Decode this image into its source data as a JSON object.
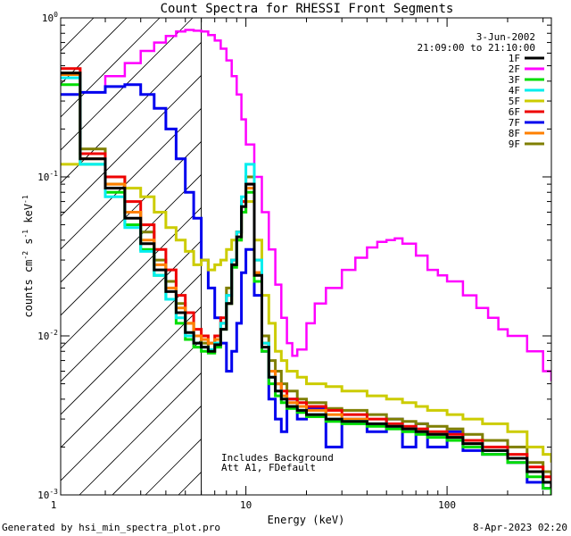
{
  "chart_data": {
    "type": "line",
    "title": "Count Spectra for RHESSI Front Segments",
    "xlabel": "Energy (keV)",
    "ylabel": "counts cm^-2 s^-1 keV^-1",
    "xscale": "log",
    "yscale": "log",
    "xlim": [
      1.2,
      330
    ],
    "ylim": [
      0.001,
      1.0
    ],
    "x_ticks": [
      {
        "value": 1,
        "label": "1"
      },
      {
        "value": 10,
        "label": "10"
      },
      {
        "value": 100,
        "label": "100"
      }
    ],
    "y_ticks": [
      {
        "value": 1,
        "label": "10^0"
      },
      {
        "value": 0.1,
        "label": "10^-1"
      },
      {
        "value": 0.01,
        "label": "10^-2"
      },
      {
        "value": 0.001,
        "label": "10^-3"
      }
    ],
    "annotation_date": "3-Jun-2002",
    "annotation_time": "21:09:00 to 21:10:00",
    "note_lines": [
      "Includes Background",
      "Att A1, FDefault"
    ],
    "attenuator_edge_keV": 6,
    "series": [
      {
        "name": "2F",
        "color": "#ff00ff",
        "x": [
          1.5,
          2,
          2.5,
          3,
          3.5,
          4,
          4.5,
          5,
          5.5,
          6,
          6.5,
          7,
          7.5,
          8,
          8.5,
          9,
          9.5,
          10,
          11,
          12,
          13,
          14,
          15,
          16,
          17,
          18,
          20,
          22,
          25,
          30,
          35,
          40,
          45,
          50,
          55,
          60,
          70,
          80,
          90,
          100,
          120,
          140,
          160,
          180,
          200,
          250,
          300,
          330
        ],
        "y": [
          0.34,
          0.43,
          0.52,
          0.62,
          0.7,
          0.77,
          0.82,
          0.84,
          0.83,
          0.82,
          0.78,
          0.72,
          0.64,
          0.54,
          0.43,
          0.33,
          0.23,
          0.16,
          0.1,
          0.06,
          0.035,
          0.021,
          0.013,
          0.009,
          0.0075,
          0.0082,
          0.012,
          0.016,
          0.02,
          0.026,
          0.031,
          0.036,
          0.039,
          0.04,
          0.041,
          0.038,
          0.032,
          0.026,
          0.024,
          0.022,
          0.018,
          0.015,
          0.013,
          0.011,
          0.01,
          0.008,
          0.006,
          0.0052
        ]
      },
      {
        "name": "7F",
        "color": "#0000ee",
        "x": [
          1.2,
          1.5,
          2,
          2.5,
          3,
          3.5,
          4,
          4.5,
          5,
          5.5,
          6,
          6.5,
          7,
          7.5,
          8,
          8.5,
          9,
          9.5,
          10,
          11,
          12,
          13,
          14,
          15,
          16,
          18,
          20,
          25,
          30,
          40,
          50,
          60,
          70,
          80,
          100,
          120,
          150,
          200,
          250,
          300,
          330
        ],
        "y": [
          0.33,
          0.34,
          0.37,
          0.38,
          0.33,
          0.27,
          0.2,
          0.13,
          0.08,
          0.055,
          0.03,
          0.02,
          0.013,
          0.009,
          0.006,
          0.008,
          0.012,
          0.025,
          0.035,
          0.018,
          0.008,
          0.004,
          0.003,
          0.0025,
          0.004,
          0.003,
          0.0035,
          0.002,
          0.003,
          0.0025,
          0.003,
          0.002,
          0.0028,
          0.002,
          0.0025,
          0.0019,
          0.0018,
          0.0016,
          0.0012,
          0.0011,
          0.001
        ]
      },
      {
        "name": "9F",
        "color": "#7f7f00",
        "x": [
          1.2,
          1.5,
          2,
          2.5,
          3,
          3.5,
          4,
          4.5,
          5,
          5.5,
          6,
          6.5,
          7,
          7.5,
          8,
          8.5,
          9,
          9.5,
          10,
          11,
          12,
          13,
          14,
          15,
          16,
          18,
          20,
          25,
          30,
          40,
          50,
          60,
          70,
          80,
          100,
          120,
          150,
          200,
          250,
          300,
          330
        ],
        "y": [
          0.45,
          0.15,
          0.09,
          0.06,
          0.045,
          0.03,
          0.022,
          0.016,
          0.012,
          0.01,
          0.009,
          0.008,
          0.009,
          0.012,
          0.02,
          0.03,
          0.045,
          0.07,
          0.1,
          0.03,
          0.01,
          0.007,
          0.006,
          0.005,
          0.0045,
          0.004,
          0.0038,
          0.0035,
          0.0034,
          0.0032,
          0.003,
          0.0029,
          0.0028,
          0.0027,
          0.0026,
          0.0024,
          0.0022,
          0.002,
          0.0016,
          0.0014,
          0.0013
        ]
      },
      {
        "name": "5F",
        "color": "#cccc00",
        "x": [
          1.2,
          1.5,
          2,
          2.5,
          3,
          3.5,
          4,
          4.5,
          5,
          5.5,
          6,
          6.5,
          7,
          7.5,
          8,
          8.5,
          9,
          9.5,
          10,
          11,
          12,
          13,
          14,
          15,
          16,
          18,
          20,
          25,
          30,
          40,
          50,
          60,
          70,
          80,
          100,
          120,
          150,
          200,
          250,
          300,
          330
        ],
        "y": [
          0.12,
          0.14,
          0.1,
          0.085,
          0.075,
          0.06,
          0.048,
          0.04,
          0.034,
          0.028,
          0.03,
          0.026,
          0.028,
          0.03,
          0.035,
          0.04,
          0.045,
          0.06,
          0.07,
          0.04,
          0.018,
          0.012,
          0.008,
          0.007,
          0.006,
          0.0055,
          0.005,
          0.0048,
          0.0045,
          0.0042,
          0.004,
          0.0038,
          0.0036,
          0.0034,
          0.0032,
          0.003,
          0.0028,
          0.0025,
          0.002,
          0.0018,
          0.0016
        ]
      },
      {
        "name": "6F",
        "color": "#ee0000",
        "x": [
          1.2,
          1.5,
          2,
          2.5,
          3,
          3.5,
          4,
          4.5,
          5,
          5.5,
          6,
          6.5,
          7,
          7.5,
          8,
          8.5,
          9,
          9.5,
          10,
          11,
          12,
          13,
          14,
          15,
          16,
          18,
          20,
          25,
          30,
          40,
          50,
          60,
          70,
          80,
          100,
          120,
          150,
          200,
          250,
          300,
          330
        ],
        "y": [
          0.48,
          0.14,
          0.1,
          0.07,
          0.05,
          0.035,
          0.026,
          0.018,
          0.014,
          0.011,
          0.01,
          0.009,
          0.01,
          0.013,
          0.018,
          0.03,
          0.045,
          0.07,
          0.09,
          0.025,
          0.009,
          0.006,
          0.005,
          0.0045,
          0.004,
          0.0038,
          0.0036,
          0.0034,
          0.0032,
          0.003,
          0.0028,
          0.0027,
          0.0026,
          0.0025,
          0.0024,
          0.0022,
          0.002,
          0.0018,
          0.0015,
          0.0013,
          0.0012
        ]
      },
      {
        "name": "8F",
        "color": "#ff8000",
        "x": [
          1.2,
          1.5,
          2,
          2.5,
          3,
          3.5,
          4,
          4.5,
          5,
          5.5,
          6,
          6.5,
          7,
          7.5,
          8,
          8.5,
          9,
          9.5,
          10,
          11,
          12,
          13,
          14,
          15,
          16,
          18,
          20,
          25,
          30,
          40,
          50,
          60,
          70,
          80,
          100,
          120,
          150,
          200,
          250,
          300,
          330
        ],
        "y": [
          0.44,
          0.13,
          0.09,
          0.06,
          0.04,
          0.028,
          0.02,
          0.015,
          0.012,
          0.01,
          0.0095,
          0.009,
          0.0095,
          0.012,
          0.016,
          0.028,
          0.04,
          0.06,
          0.085,
          0.025,
          0.009,
          0.006,
          0.005,
          0.0042,
          0.0038,
          0.0036,
          0.0034,
          0.0032,
          0.003,
          0.0028,
          0.0027,
          0.0026,
          0.0025,
          0.0024,
          0.0023,
          0.0021,
          0.0019,
          0.0017,
          0.0014,
          0.0012,
          0.0011
        ]
      },
      {
        "name": "3F",
        "color": "#00dd00",
        "x": [
          1.2,
          1.5,
          2,
          2.5,
          3,
          3.5,
          4,
          4.5,
          5,
          5.5,
          6,
          6.5,
          7,
          7.5,
          8,
          8.5,
          9,
          9.5,
          10,
          11,
          12,
          13,
          14,
          15,
          16,
          18,
          20,
          25,
          30,
          40,
          50,
          60,
          70,
          80,
          100,
          120,
          150,
          200,
          250,
          300,
          330
        ],
        "y": [
          0.38,
          0.12,
          0.08,
          0.05,
          0.035,
          0.024,
          0.017,
          0.012,
          0.0095,
          0.0085,
          0.008,
          0.0078,
          0.0085,
          0.011,
          0.016,
          0.027,
          0.04,
          0.06,
          0.08,
          0.022,
          0.008,
          0.005,
          0.0042,
          0.0038,
          0.0035,
          0.0033,
          0.0031,
          0.0029,
          0.0028,
          0.0027,
          0.0026,
          0.0025,
          0.0024,
          0.0023,
          0.0022,
          0.002,
          0.0018,
          0.0016,
          0.0013,
          0.0011,
          0.001
        ]
      },
      {
        "name": "4F",
        "color": "#00eeee",
        "x": [
          1.2,
          1.5,
          2,
          2.5,
          3,
          3.5,
          4,
          4.5,
          5,
          5.5,
          6,
          6.5,
          7,
          7.5,
          8,
          8.5,
          9,
          9.5,
          10,
          11,
          12,
          13,
          14,
          15,
          16,
          18,
          20,
          25,
          30,
          40,
          50,
          60,
          70,
          80,
          100,
          120,
          150,
          200,
          250,
          300,
          330
        ],
        "y": [
          0.42,
          0.12,
          0.075,
          0.048,
          0.034,
          0.024,
          0.017,
          0.013,
          0.01,
          0.009,
          0.0085,
          0.0082,
          0.009,
          0.012,
          0.018,
          0.03,
          0.045,
          0.075,
          0.12,
          0.03,
          0.009,
          0.0055,
          0.0045,
          0.004,
          0.0036,
          0.0034,
          0.0032,
          0.003,
          0.0029,
          0.0028,
          0.0027,
          0.0026,
          0.0025,
          0.0024,
          0.0023,
          0.0021,
          0.0019,
          0.0017,
          0.0014,
          0.0012,
          0.0011
        ]
      },
      {
        "name": "1F",
        "color": "#000000",
        "x": [
          1.2,
          1.5,
          2,
          2.5,
          3,
          3.5,
          4,
          4.5,
          5,
          5.5,
          6,
          6.5,
          7,
          7.5,
          8,
          8.5,
          9,
          9.5,
          10,
          11,
          12,
          13,
          14,
          15,
          16,
          18,
          20,
          25,
          30,
          40,
          50,
          60,
          70,
          80,
          100,
          120,
          150,
          200,
          250,
          300,
          330
        ],
        "y": [
          0.45,
          0.13,
          0.085,
          0.055,
          0.038,
          0.026,
          0.019,
          0.014,
          0.0105,
          0.009,
          0.0085,
          0.008,
          0.0088,
          0.011,
          0.016,
          0.028,
          0.042,
          0.065,
          0.09,
          0.024,
          0.0085,
          0.0055,
          0.0045,
          0.004,
          0.0036,
          0.0034,
          0.0032,
          0.003,
          0.0029,
          0.0028,
          0.0027,
          0.0026,
          0.0025,
          0.0024,
          0.0023,
          0.0021,
          0.0019,
          0.0017,
          0.0014,
          0.0012,
          0.0011
        ]
      }
    ],
    "legend": [
      {
        "name": "1F",
        "color": "#000000"
      },
      {
        "name": "2F",
        "color": "#ff00ff"
      },
      {
        "name": "3F",
        "color": "#00dd00"
      },
      {
        "name": "4F",
        "color": "#00eeee"
      },
      {
        "name": "5F",
        "color": "#cccc00"
      },
      {
        "name": "6F",
        "color": "#ee0000"
      },
      {
        "name": "7F",
        "color": "#0000ee"
      },
      {
        "name": "8F",
        "color": "#ff8000"
      },
      {
        "name": "9F",
        "color": "#7f7f00"
      }
    ]
  },
  "footer": {
    "left": "Generated by hsi_min_spectra_plot.pro",
    "right": "8-Apr-2023 02:20"
  }
}
